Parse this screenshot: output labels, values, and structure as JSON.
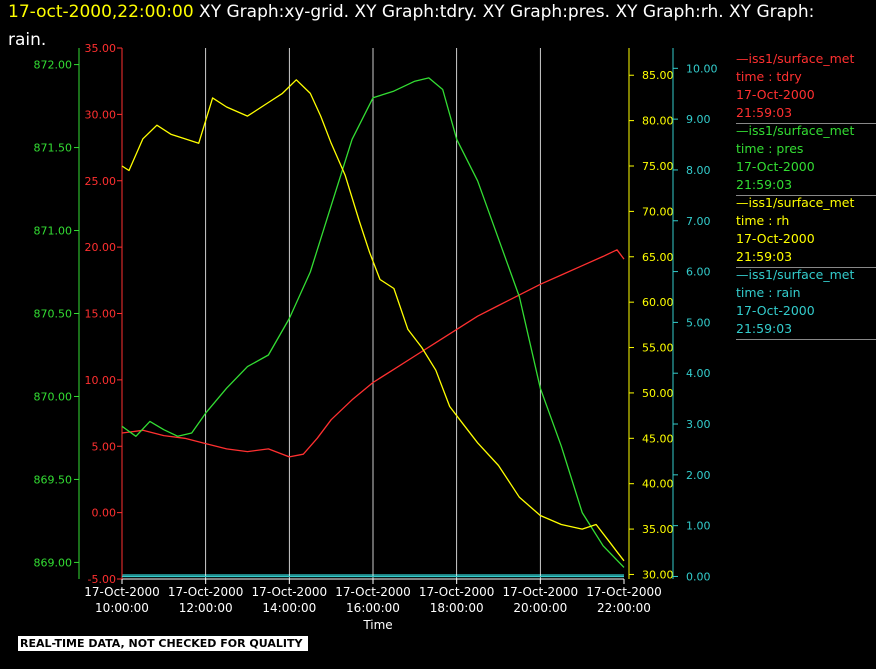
{
  "header": {
    "timestamp": "17-oct-2000,22:00:00",
    "title_rest": " XY Graph:xy-grid.  XY Graph:tdry.  XY Graph:pres.  XY Graph:rh.  XY Graph:",
    "title_line2": "rain."
  },
  "disclaimer": "REAL-TIME DATA, NOT CHECKED FOR QUALITY",
  "legend": [
    {
      "source": "—iss1/surface_met",
      "var": "time : tdry",
      "date": "17-Oct-2000",
      "time": "21:59:03",
      "color": "#ff3030"
    },
    {
      "source": "—iss1/surface_met",
      "var": "time : pres",
      "date": "17-Oct-2000",
      "time": "21:59:03",
      "color": "#33dd33"
    },
    {
      "source": "—iss1/surface_met",
      "var": "time : rh",
      "date": "17-Oct-2000",
      "time": "21:59:03",
      "color": "#ffff00"
    },
    {
      "source": "—iss1/surface_met",
      "var": "time : rain",
      "date": "17-Oct-2000",
      "time": "21:59:03",
      "color": "#33cccc"
    }
  ],
  "chart_data": {
    "type": "line",
    "xlabel": "Time",
    "x_ticks": [
      [
        "17-Oct-2000",
        "10:00:00"
      ],
      [
        "17-Oct-2000",
        "12:00:00"
      ],
      [
        "17-Oct-2000",
        "14:00:00"
      ],
      [
        "17-Oct-2000",
        "16:00:00"
      ],
      [
        "17-Oct-2000",
        "18:00:00"
      ],
      [
        "17-Oct-2000",
        "20:00:00"
      ],
      [
        "17-Oct-2000",
        "22:00:00"
      ]
    ],
    "xlim": [
      "17-Oct-2000 10:00:00",
      "17-Oct-2000 22:00:00"
    ],
    "grid": "vertical",
    "axes": {
      "pres": {
        "color": "#33dd33",
        "ticks": [
          "869.00",
          "869.50",
          "870.00",
          "870.50",
          "871.00",
          "871.50",
          "872.00"
        ],
        "ylim": [
          868.9,
          872.1
        ]
      },
      "tdry": {
        "color": "#ff3030",
        "ticks": [
          "-5.00",
          "0.00",
          "5.00",
          "10.00",
          "15.00",
          "20.00",
          "25.00",
          "30.00",
          "35.00"
        ],
        "ylim": [
          -5,
          35
        ]
      },
      "rh": {
        "color": "#ffff00",
        "ticks": [
          "30.00",
          "35.00",
          "40.00",
          "45.00",
          "50.00",
          "55.00",
          "60.00",
          "65.00",
          "70.00",
          "75.00",
          "80.00",
          "85.00"
        ],
        "ylim": [
          29.5,
          88
        ]
      },
      "rain": {
        "color": "#33cccc",
        "ticks": [
          "0.00",
          "1.00",
          "2.00",
          "3.00",
          "4.00",
          "5.00",
          "6.00",
          "7.00",
          "8.00",
          "9.00",
          "10.00"
        ],
        "ylim": [
          -0.05,
          10.4
        ]
      }
    },
    "series": [
      {
        "name": "tdry",
        "axis": "tdry",
        "color": "#ff3030",
        "x": [
          "10:00",
          "10:30",
          "11:00",
          "11:30",
          "12:00",
          "12:30",
          "13:00",
          "13:30",
          "14:00",
          "14:20",
          "14:40",
          "15:00",
          "15:30",
          "16:00",
          "16:30",
          "17:00",
          "17:30",
          "18:00",
          "18:30",
          "19:00",
          "19:30",
          "20:00",
          "20:30",
          "21:00",
          "21:30",
          "21:50",
          "22:00"
        ],
        "values": [
          6.0,
          6.2,
          5.8,
          5.6,
          5.2,
          4.8,
          4.6,
          4.8,
          4.2,
          4.4,
          5.6,
          7.0,
          8.5,
          9.8,
          10.8,
          11.8,
          12.8,
          13.8,
          14.8,
          15.6,
          16.4,
          17.2,
          17.9,
          18.6,
          19.3,
          19.8,
          19.1
        ]
      },
      {
        "name": "pres",
        "axis": "pres",
        "color": "#33dd33",
        "x": [
          "10:00",
          "10:20",
          "10:40",
          "11:00",
          "11:20",
          "11:40",
          "12:00",
          "12:30",
          "13:00",
          "13:30",
          "14:00",
          "14:30",
          "15:00",
          "15:30",
          "16:00",
          "16:30",
          "17:00",
          "17:20",
          "17:40",
          "18:00",
          "18:30",
          "19:00",
          "19:30",
          "20:00",
          "20:30",
          "21:00",
          "21:30",
          "22:00"
        ],
        "values": [
          869.82,
          869.76,
          869.85,
          869.8,
          869.76,
          869.78,
          869.9,
          870.05,
          870.18,
          870.25,
          870.47,
          870.75,
          871.15,
          871.55,
          871.8,
          871.84,
          871.9,
          871.92,
          871.85,
          871.55,
          871.3,
          870.95,
          870.6,
          870.05,
          869.7,
          869.3,
          869.1,
          868.97
        ]
      },
      {
        "name": "rh",
        "axis": "rh",
        "color": "#ffff00",
        "x": [
          "10:00",
          "10:10",
          "10:30",
          "10:50",
          "11:10",
          "11:30",
          "11:50",
          "12:00",
          "12:10",
          "12:30",
          "13:00",
          "13:30",
          "13:50",
          "14:10",
          "14:30",
          "14:45",
          "15:00",
          "15:20",
          "15:40",
          "15:55",
          "16:10",
          "16:30",
          "16:50",
          "17:10",
          "17:30",
          "17:50",
          "18:10",
          "18:30",
          "19:00",
          "19:30",
          "20:00",
          "20:30",
          "21:00",
          "21:20",
          "21:40",
          "21:50",
          "22:00"
        ],
        "values": [
          75.0,
          74.5,
          78.0,
          79.5,
          78.5,
          78.0,
          77.5,
          80.0,
          82.5,
          81.5,
          80.5,
          82.0,
          83.0,
          84.5,
          83.0,
          80.5,
          77.5,
          74.0,
          69.0,
          65.5,
          62.5,
          61.5,
          57.0,
          55.0,
          52.5,
          48.5,
          46.5,
          44.5,
          42.0,
          38.5,
          36.5,
          35.5,
          35.0,
          35.5,
          33.5,
          32.5,
          31.5
        ]
      },
      {
        "name": "rain",
        "axis": "rain",
        "color": "#33cccc",
        "x": [
          "10:00",
          "22:00"
        ],
        "values": [
          0.0,
          0.0
        ]
      }
    ]
  }
}
